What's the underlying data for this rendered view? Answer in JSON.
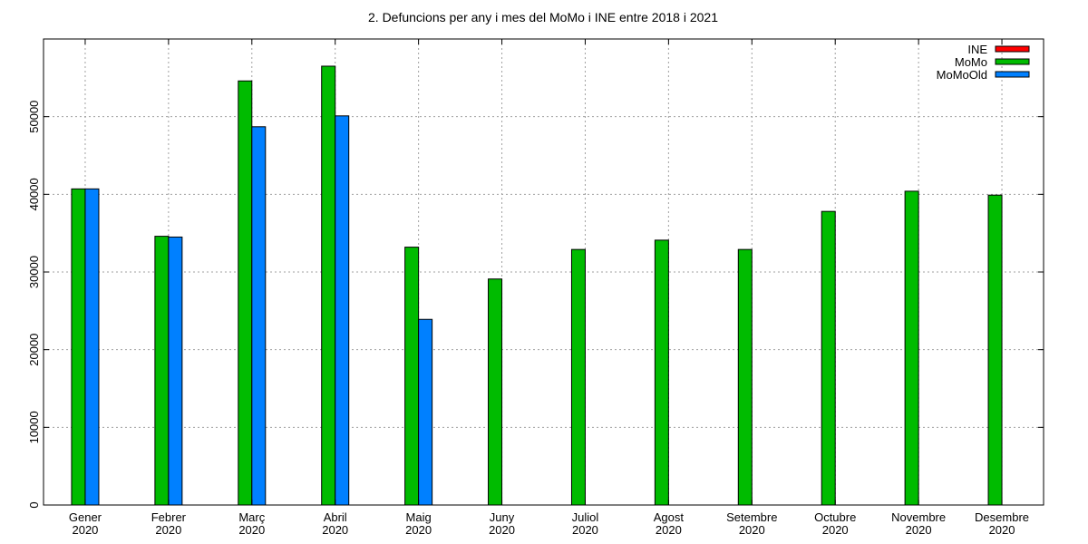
{
  "chart_data": {
    "type": "bar",
    "title": "2. Defuncions per any i mes del MoMo i INE entre 2018 i 2021",
    "categories": [
      [
        "Gener",
        "2020"
      ],
      [
        "Febrer",
        "2020"
      ],
      [
        "Març",
        "2020"
      ],
      [
        "Abril",
        "2020"
      ],
      [
        "Maig",
        "2020"
      ],
      [
        "Juny",
        "2020"
      ],
      [
        "Juliol",
        "2020"
      ],
      [
        "Agost",
        "2020"
      ],
      [
        "Setembre",
        "2020"
      ],
      [
        "Octubre",
        "2020"
      ],
      [
        "Novembre",
        "2020"
      ],
      [
        "Desembre",
        "2020"
      ]
    ],
    "series": [
      {
        "name": "INE",
        "color": "#ff0000",
        "values": [
          null,
          null,
          null,
          null,
          null,
          null,
          null,
          null,
          null,
          null,
          null,
          null
        ]
      },
      {
        "name": "MoMo",
        "color": "#00bb00",
        "values": [
          40700,
          34600,
          54600,
          56500,
          33200,
          29100,
          32900,
          34100,
          32900,
          37800,
          40400,
          39900
        ]
      },
      {
        "name": "MoMoOld",
        "color": "#0080ff",
        "values": [
          40700,
          34500,
          48700,
          50100,
          23900,
          null,
          null,
          null,
          null,
          null,
          null,
          null
        ]
      }
    ],
    "yticks": [
      0,
      10000,
      20000,
      30000,
      40000,
      50000
    ],
    "ylim": [
      0,
      60000
    ],
    "grid": true,
    "legend_position": "top-right"
  }
}
